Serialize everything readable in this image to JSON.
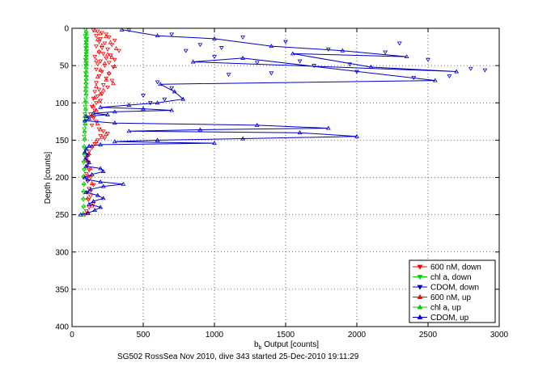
{
  "chart_data": {
    "type": "scatter",
    "xlabel_main": "b",
    "xlabel_sub": "b",
    "xlabel_rest": " Output [counts]",
    "ylabel": "Depth [counts]",
    "caption": "SG502 RossSea Nov 2010, dive 343 started 25-Dec-2010 19:11:29",
    "xlim": [
      0,
      3000
    ],
    "ylim": [
      0,
      400
    ],
    "y_reversed": true,
    "grid": true,
    "legend_position": "bottom-right",
    "xticks": [
      "0",
      "500",
      "1000",
      "1500",
      "2000",
      "2500",
      "3000"
    ],
    "yticks": [
      "0",
      "50",
      "100",
      "150",
      "200",
      "250",
      "300",
      "350",
      "400"
    ],
    "series": [
      {
        "name": "600 nM, down",
        "color": "#ff0000",
        "marker": "triangle-down",
        "line": false,
        "points": [
          [
            150,
            2
          ],
          [
            180,
            4
          ],
          [
            210,
            6
          ],
          [
            240,
            8
          ],
          [
            170,
            10
          ],
          [
            260,
            12
          ],
          [
            200,
            14
          ],
          [
            300,
            16
          ],
          [
            190,
            18
          ],
          [
            230,
            20
          ],
          [
            280,
            22
          ],
          [
            170,
            24
          ],
          [
            210,
            26
          ],
          [
            250,
            28
          ],
          [
            330,
            30
          ],
          [
            190,
            32
          ],
          [
            220,
            34
          ],
          [
            270,
            36
          ],
          [
            160,
            38
          ],
          [
            240,
            40
          ],
          [
            300,
            42
          ],
          [
            200,
            44
          ],
          [
            260,
            46
          ],
          [
            180,
            48
          ],
          [
            230,
            50
          ],
          [
            290,
            52
          ],
          [
            170,
            55
          ],
          [
            210,
            58
          ],
          [
            260,
            61
          ],
          [
            190,
            64
          ],
          [
            240,
            67
          ],
          [
            280,
            70
          ],
          [
            170,
            73
          ],
          [
            220,
            76
          ],
          [
            250,
            79
          ],
          [
            190,
            82
          ],
          [
            160,
            85
          ],
          [
            210,
            88
          ],
          [
            180,
            91
          ],
          [
            150,
            94
          ],
          [
            200,
            97
          ],
          [
            170,
            100
          ],
          [
            140,
            105
          ],
          [
            160,
            110
          ],
          [
            130,
            115
          ],
          [
            150,
            120
          ],
          [
            170,
            125
          ],
          [
            140,
            130
          ],
          [
            190,
            135
          ],
          [
            220,
            138
          ],
          [
            250,
            141
          ],
          [
            200,
            144
          ],
          [
            230,
            147
          ],
          [
            180,
            150
          ],
          [
            160,
            155
          ],
          [
            140,
            160
          ],
          [
            120,
            165
          ],
          [
            110,
            170
          ],
          [
            100,
            175
          ],
          [
            115,
            180
          ],
          [
            105,
            185
          ],
          [
            120,
            190
          ],
          [
            100,
            195
          ],
          [
            130,
            200
          ],
          [
            110,
            205
          ],
          [
            150,
            210
          ],
          [
            120,
            215
          ],
          [
            105,
            220
          ],
          [
            130,
            225
          ],
          [
            115,
            230
          ],
          [
            150,
            235
          ],
          [
            120,
            240
          ],
          [
            100,
            245
          ],
          [
            90,
            250
          ]
        ]
      },
      {
        "name": "chl a, down",
        "color": "#00cc00",
        "marker": "triangle-down",
        "line": false,
        "points": [
          [
            95,
            2
          ],
          [
            100,
            6
          ],
          [
            92,
            10
          ],
          [
            105,
            14
          ],
          [
            98,
            18
          ],
          [
            102,
            22
          ],
          [
            96,
            26
          ],
          [
            104,
            30
          ],
          [
            99,
            34
          ],
          [
            101,
            38
          ],
          [
            94,
            42
          ],
          [
            103,
            46
          ],
          [
            97,
            50
          ],
          [
            100,
            55
          ],
          [
            95,
            60
          ],
          [
            102,
            65
          ],
          [
            98,
            70
          ],
          [
            100,
            75
          ],
          [
            96,
            80
          ],
          [
            99,
            85
          ],
          [
            101,
            90
          ],
          [
            95,
            95
          ],
          [
            98,
            100
          ],
          [
            92,
            105
          ],
          [
            96,
            110
          ],
          [
            90,
            115
          ],
          [
            94,
            120
          ],
          [
            88,
            125
          ],
          [
            92,
            130
          ],
          [
            86,
            135
          ],
          [
            90,
            140
          ],
          [
            85,
            145
          ],
          [
            88,
            150
          ],
          [
            84,
            160
          ],
          [
            86,
            170
          ],
          [
            82,
            180
          ],
          [
            85,
            190
          ],
          [
            80,
            200
          ],
          [
            83,
            210
          ],
          [
            81,
            220
          ],
          [
            79,
            230
          ],
          [
            80,
            240
          ],
          [
            78,
            250
          ]
        ]
      },
      {
        "name": "CDOM, down",
        "color": "#0000cc",
        "marker": "triangle-down",
        "line": false,
        "points": [
          [
            400,
            2
          ],
          [
            700,
            8
          ],
          [
            1200,
            12
          ],
          [
            1500,
            18
          ],
          [
            900,
            22
          ],
          [
            1800,
            28
          ],
          [
            2200,
            32
          ],
          [
            1000,
            38
          ],
          [
            2500,
            42
          ],
          [
            1300,
            46
          ],
          [
            1700,
            50
          ],
          [
            2800,
            54
          ],
          [
            2000,
            58
          ],
          [
            1100,
            62
          ],
          [
            2400,
            66
          ],
          [
            600,
            72
          ],
          [
            1400,
            60
          ],
          [
            2900,
            56
          ],
          [
            1600,
            44
          ],
          [
            800,
            30
          ],
          [
            2300,
            20
          ],
          [
            1050,
            26
          ],
          [
            1950,
            48
          ],
          [
            2650,
            64
          ],
          [
            500,
            90
          ],
          [
            650,
            95
          ],
          [
            700,
            80
          ],
          [
            550,
            100
          ]
        ]
      },
      {
        "name": "600 nM, up",
        "color": "#ff0000",
        "marker": "triangle-up",
        "line": false,
        "points": [
          [
            160,
            3
          ],
          [
            200,
            7
          ],
          [
            240,
            11
          ],
          [
            180,
            15
          ],
          [
            270,
            19
          ],
          [
            210,
            23
          ],
          [
            310,
            27
          ],
          [
            190,
            31
          ],
          [
            250,
            35
          ],
          [
            280,
            39
          ],
          [
            170,
            43
          ],
          [
            230,
            47
          ],
          [
            300,
            51
          ],
          [
            200,
            56
          ],
          [
            260,
            60
          ],
          [
            180,
            65
          ],
          [
            240,
            69
          ],
          [
            290,
            74
          ],
          [
            170,
            78
          ],
          [
            220,
            83
          ],
          [
            200,
            88
          ],
          [
            160,
            93
          ],
          [
            190,
            98
          ],
          [
            150,
            104
          ],
          [
            170,
            110
          ],
          [
            140,
            118
          ],
          [
            180,
            128
          ],
          [
            200,
            136
          ],
          [
            240,
            142
          ],
          [
            210,
            146
          ],
          [
            170,
            152
          ],
          [
            140,
            158
          ],
          [
            120,
            168
          ],
          [
            110,
            178
          ],
          [
            130,
            188
          ],
          [
            115,
            198
          ],
          [
            140,
            208
          ],
          [
            125,
            218
          ],
          [
            110,
            228
          ],
          [
            140,
            238
          ],
          [
            115,
            248
          ]
        ]
      },
      {
        "name": "chl a, up",
        "color": "#00cc00",
        "marker": "triangle-up",
        "line": false,
        "points": [
          [
            100,
            4
          ],
          [
            104,
            8
          ],
          [
            98,
            12
          ],
          [
            102,
            16
          ],
          [
            96,
            20
          ],
          [
            103,
            24
          ],
          [
            99,
            28
          ],
          [
            101,
            32
          ],
          [
            97,
            36
          ],
          [
            100,
            40
          ],
          [
            96,
            44
          ],
          [
            102,
            48
          ],
          [
            98,
            52
          ],
          [
            101,
            58
          ],
          [
            97,
            63
          ],
          [
            100,
            68
          ],
          [
            96,
            73
          ],
          [
            99,
            78
          ],
          [
            94,
            83
          ],
          [
            97,
            88
          ],
          [
            92,
            98
          ],
          [
            95,
            108
          ],
          [
            90,
            118
          ],
          [
            93,
            128
          ],
          [
            88,
            138
          ],
          [
            91,
            148
          ],
          [
            86,
            158
          ],
          [
            88,
            168
          ],
          [
            84,
            178
          ],
          [
            86,
            188
          ],
          [
            82,
            198
          ],
          [
            84,
            208
          ],
          [
            81,
            218
          ],
          [
            80,
            228
          ],
          [
            82,
            238
          ],
          [
            79,
            248
          ]
        ]
      },
      {
        "name": "CDOM, up",
        "color": "#0000cc",
        "marker": "triangle-up",
        "line": true,
        "points": [
          [
            350,
            2
          ],
          [
            600,
            10
          ],
          [
            1000,
            14
          ],
          [
            1400,
            24
          ],
          [
            1900,
            30
          ],
          [
            2350,
            38
          ],
          [
            1550,
            34
          ],
          [
            2100,
            52
          ],
          [
            2700,
            58
          ],
          [
            850,
            45
          ],
          [
            1200,
            40
          ],
          [
            2550,
            70
          ],
          [
            620,
            75
          ],
          [
            720,
            85
          ],
          [
            780,
            95
          ],
          [
            600,
            100
          ],
          [
            400,
            103
          ],
          [
            200,
            106
          ],
          [
            500,
            108
          ],
          [
            700,
            110
          ],
          [
            300,
            112
          ],
          [
            150,
            114
          ],
          [
            250,
            116
          ],
          [
            100,
            118
          ],
          [
            120,
            121
          ],
          [
            90,
            124
          ],
          [
            300,
            127
          ],
          [
            1300,
            130
          ],
          [
            1800,
            134
          ],
          [
            900,
            136
          ],
          [
            400,
            138
          ],
          [
            1600,
            140
          ],
          [
            2000,
            145
          ],
          [
            1200,
            148
          ],
          [
            600,
            150
          ],
          [
            300,
            152
          ],
          [
            1000,
            154
          ],
          [
            200,
            156
          ],
          [
            120,
            158
          ],
          [
            100,
            162
          ],
          [
            90,
            166
          ],
          [
            110,
            170
          ],
          [
            95,
            175
          ],
          [
            120,
            180
          ],
          [
            100,
            185
          ],
          [
            200,
            188
          ],
          [
            220,
            192
          ],
          [
            140,
            196
          ],
          [
            90,
            200
          ],
          [
            110,
            203
          ],
          [
            200,
            206
          ],
          [
            360,
            209
          ],
          [
            220,
            212
          ],
          [
            130,
            216
          ],
          [
            100,
            220
          ],
          [
            180,
            224
          ],
          [
            220,
            228
          ],
          [
            150,
            232
          ],
          [
            120,
            236
          ],
          [
            200,
            240
          ],
          [
            160,
            244
          ],
          [
            110,
            248
          ],
          [
            60,
            250
          ]
        ]
      }
    ]
  }
}
